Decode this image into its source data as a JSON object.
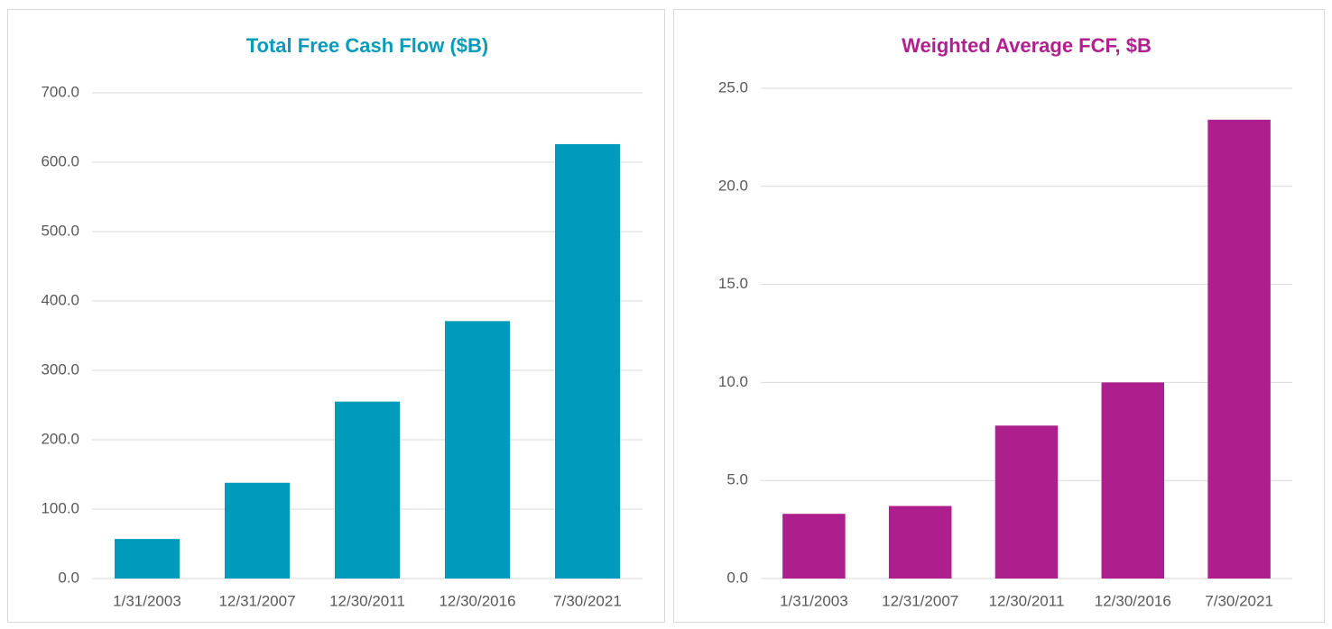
{
  "chart_data": [
    {
      "type": "bar",
      "title": "Total Free Cash Flow ($B)",
      "title_color": "#0a9bbb",
      "categories": [
        "1/31/2003",
        "12/31/2007",
        "12/30/2011",
        "12/30/2016",
        "7/30/2021"
      ],
      "values": [
        57,
        138,
        255,
        371,
        626
      ],
      "color": "#009abb",
      "ylim": [
        0,
        700
      ],
      "yticks": [
        {
          "value": 0,
          "label": "0.0"
        },
        {
          "value": 100,
          "label": "100.0"
        },
        {
          "value": 200,
          "label": "200.0"
        },
        {
          "value": 300,
          "label": "300.0"
        },
        {
          "value": 400,
          "label": "400.0"
        },
        {
          "value": 500,
          "label": "500.0"
        },
        {
          "value": 600,
          "label": "600.0"
        },
        {
          "value": 700,
          "label": "700.0"
        }
      ],
      "grid": true
    },
    {
      "type": "bar",
      "title": "Weighted Average FCF, $B",
      "title_color": "#b0208f",
      "categories": [
        "1/31/2003",
        "12/31/2007",
        "12/30/2011",
        "12/30/2016",
        "7/30/2021"
      ],
      "values": [
        3.3,
        3.7,
        7.8,
        10.0,
        23.4
      ],
      "color": "#ae1f8e",
      "ylim": [
        0,
        25
      ],
      "yticks": [
        {
          "value": 0,
          "label": "0.0"
        },
        {
          "value": 5,
          "label": "5.0"
        },
        {
          "value": 10,
          "label": "10.0"
        },
        {
          "value": 15,
          "label": "15.0"
        },
        {
          "value": 20,
          "label": "20.0"
        },
        {
          "value": 25,
          "label": "25.0"
        }
      ],
      "grid": true
    }
  ]
}
